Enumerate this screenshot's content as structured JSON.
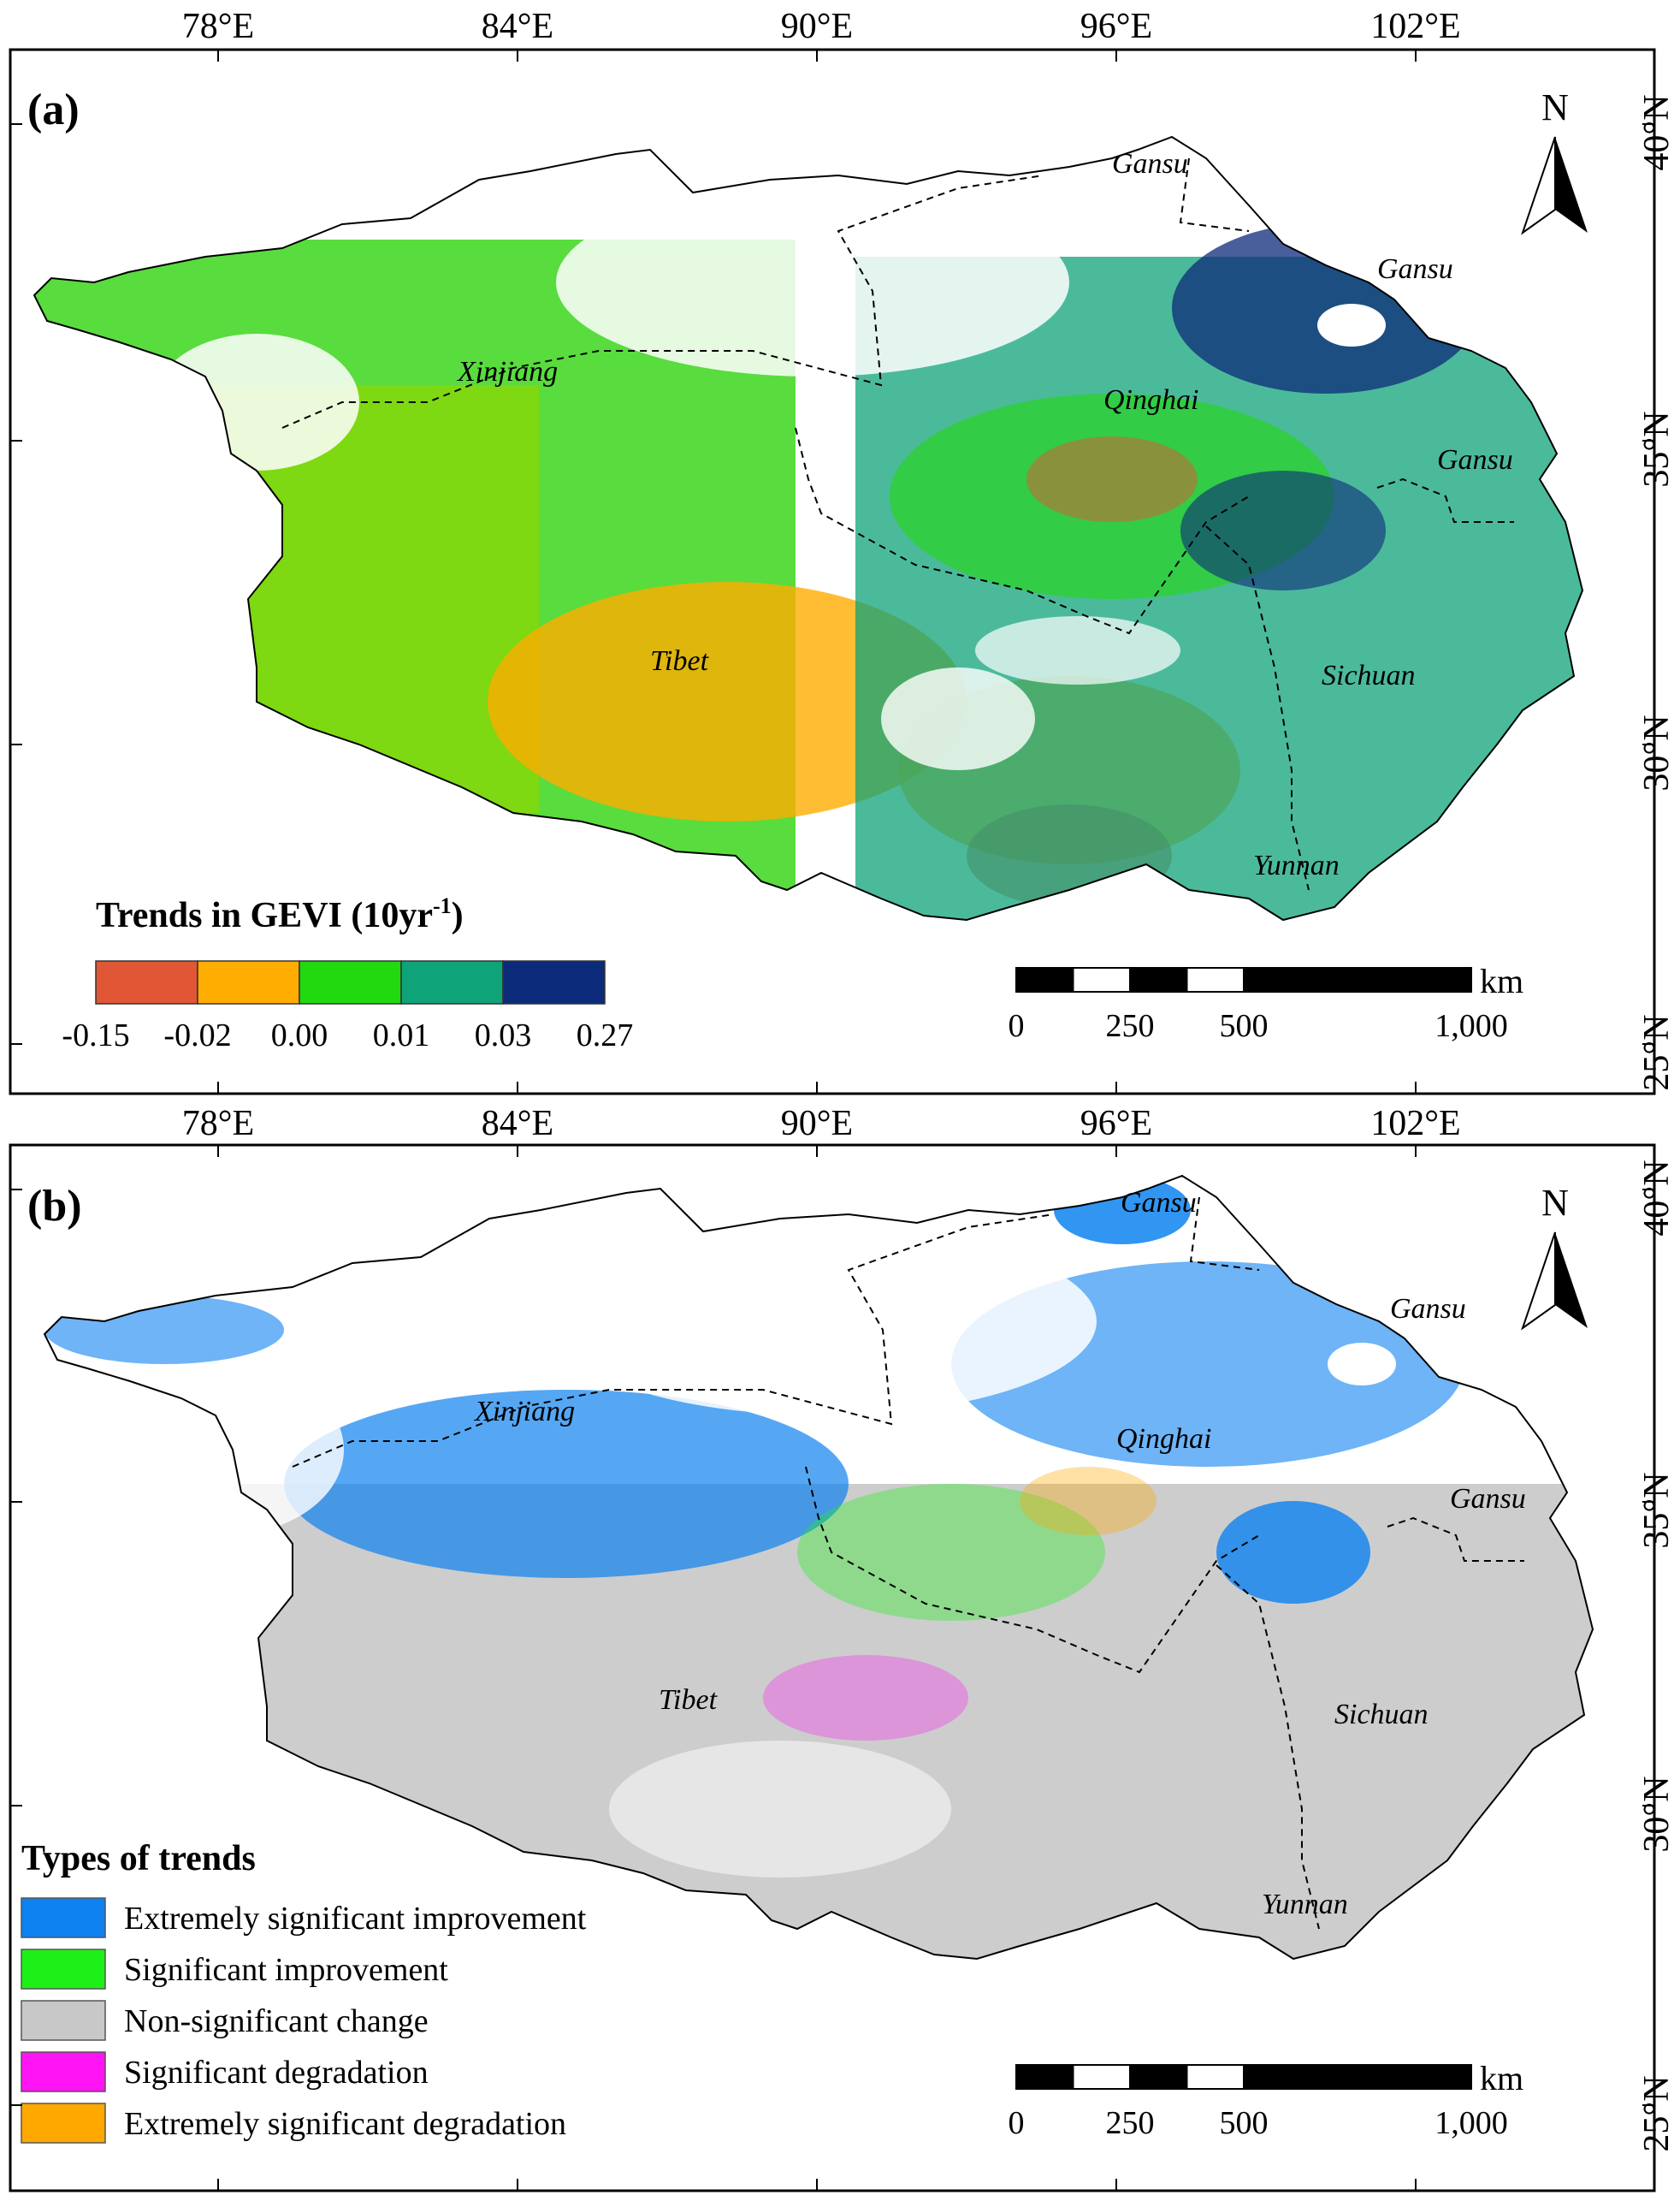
{
  "colors": {
    "trend": [
      "#e15634",
      "#ffad00",
      "#22d80f",
      "#0fa37a",
      "#0c2a7a"
    ],
    "types": [
      "#0d82f0",
      "#1df016",
      "#c8c8c8",
      "#ff14f5",
      "#ffa800"
    ],
    "border": "#000000",
    "province_line": "#000000"
  },
  "axes": {
    "lon_labels": [
      "78°E",
      "84°E",
      "90°E",
      "96°E",
      "102°E"
    ],
    "lat_labels": [
      "40°N",
      "35°N",
      "30°N",
      "25°N"
    ]
  },
  "panel_a": {
    "label": "(a)",
    "north": "N",
    "provinces": {
      "gansu_top": "Gansu",
      "gansu_mid": "Gansu",
      "gansu_low": "Gansu",
      "xinjiang": "Xinjiang",
      "qinghai": "Qinghai",
      "tibet": "Tibet",
      "sichuan": "Sichuan",
      "yunnan": "Yunnan"
    },
    "legend": {
      "title_main": "Trends in GEVI (10yr",
      "title_sup": "-1",
      "title_end": ")",
      "ticks": [
        "-0.15",
        "-0.02",
        "0.00",
        "0.01",
        "0.03",
        "0.27"
      ]
    },
    "scalebar": {
      "unit": "km",
      "ticks": [
        "0",
        "250",
        "500",
        "1,000"
      ]
    }
  },
  "panel_b": {
    "label": "(b)",
    "north": "N",
    "provinces": {
      "gansu_top": "Gansu",
      "gansu_mid": "Gansu",
      "gansu_low": "Gansu",
      "xinjiang": "Xinjiang",
      "qinghai": "Qinghai",
      "tibet": "Tibet",
      "sichuan": "Sichuan",
      "yunnan": "Yunnan"
    },
    "legend": {
      "title": "Types of trends",
      "items": [
        "Extremely significant improvement",
        "Significant improvement",
        "Non-significant change",
        "Significant degradation",
        "Extremely significant degradation"
      ]
    },
    "scalebar": {
      "unit": "km",
      "ticks": [
        "0",
        "250",
        "500",
        "1,000"
      ]
    }
  }
}
